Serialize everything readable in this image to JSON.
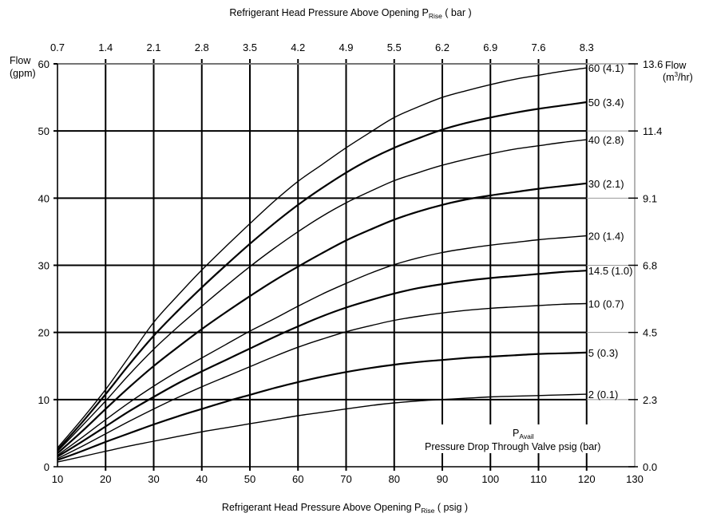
{
  "chart_data": {
    "type": "line",
    "title_top": "Refrigerant Head Pressure  Above Opening P",
    "title_top_sub": "Rise",
    "title_top_unit": " ( bar )",
    "xlabel_main": "Refrigerant Head Pressure  Above Opening P",
    "xlabel_sub": "Rise",
    "xlabel_unit": " ( psig )",
    "left_axis_label_line1": "Flow",
    "left_axis_label_line2": "(gpm)",
    "right_axis_label_line1": "Flow",
    "right_axis_label_line2_pre": "(m",
    "right_axis_label_line2_sup": "3",
    "right_axis_label_line2_post": "/hr)",
    "x_range": [
      10,
      130
    ],
    "y_range": [
      0,
      60
    ],
    "x_ticks": [
      "10",
      "20",
      "30",
      "40",
      "50",
      "60",
      "70",
      "80",
      "90",
      "100",
      "110",
      "120",
      "130"
    ],
    "x_tick_values": [
      10,
      20,
      30,
      40,
      50,
      60,
      70,
      80,
      90,
      100,
      110,
      120,
      130
    ],
    "y_ticks": [
      "0",
      "10",
      "20",
      "30",
      "40",
      "50",
      "60"
    ],
    "y_tick_values": [
      0,
      10,
      20,
      30,
      40,
      50,
      60
    ],
    "top_ticks": [
      "0.7",
      "1.4",
      "2.1",
      "2.8",
      "3.5",
      "4.2",
      "4.9",
      "5.5",
      "6.2",
      "6.9",
      "7.6",
      "8.3"
    ],
    "top_tick_values": [
      10,
      20,
      30,
      40,
      50,
      60,
      70,
      80,
      90,
      100,
      110,
      120
    ],
    "right_ticks": [
      "0.0",
      "2.3",
      "4.5",
      "6.8",
      "9.1",
      "11.4",
      "13.6"
    ],
    "right_tick_values": [
      0,
      10,
      20,
      30,
      40,
      50,
      60
    ],
    "vgrid": [
      20,
      30,
      40,
      50,
      60,
      70,
      80,
      90,
      100,
      110,
      120
    ],
    "hgrid": [
      10,
      20,
      30,
      40,
      50,
      60
    ],
    "annotation_p": "P",
    "annotation_sub": "Avail",
    "annotation_desc": "Pressure Drop Through Valve psig (bar)",
    "x": [
      10,
      15,
      20,
      25,
      30,
      35,
      40,
      45,
      50,
      55,
      60,
      65,
      70,
      75,
      80,
      85,
      90,
      95,
      100,
      105,
      110,
      115,
      120
    ],
    "series": [
      {
        "name": "60 (4.1)",
        "values": [
          2.8,
          7.0,
          11.5,
          16.5,
          21.5,
          25.5,
          29.3,
          32.8,
          36.2,
          39.5,
          42.5,
          45.0,
          47.5,
          49.8,
          52.0,
          53.6,
          55.0,
          56.0,
          56.9,
          57.7,
          58.3,
          58.9,
          59.4
        ]
      },
      {
        "name": "50 (3.4)",
        "values": [
          2.5,
          6.5,
          10.8,
          15.3,
          19.5,
          23.2,
          26.7,
          30.0,
          33.2,
          36.2,
          39.0,
          41.5,
          43.8,
          45.8,
          47.5,
          48.9,
          50.2,
          51.2,
          52.0,
          52.7,
          53.3,
          53.8,
          54.3
        ]
      },
      {
        "name": "40 (2.8)",
        "values": [
          2.3,
          6.0,
          9.8,
          13.8,
          17.5,
          20.8,
          23.9,
          26.9,
          29.8,
          32.5,
          35.0,
          37.3,
          39.3,
          41.0,
          42.6,
          43.8,
          44.9,
          45.8,
          46.6,
          47.3,
          47.8,
          48.3,
          48.7
        ]
      },
      {
        "name": "30 (2.1)",
        "values": [
          2.0,
          5.2,
          8.6,
          11.9,
          15.0,
          17.8,
          20.5,
          23.0,
          25.4,
          27.7,
          29.8,
          31.8,
          33.7,
          35.3,
          36.8,
          38.0,
          39.0,
          39.8,
          40.4,
          40.9,
          41.4,
          41.8,
          42.2
        ]
      },
      {
        "name": "20 (1.4)",
        "values": [
          1.7,
          4.3,
          7.0,
          9.6,
          12.0,
          14.2,
          16.2,
          18.2,
          20.2,
          22.0,
          23.9,
          25.7,
          27.3,
          28.8,
          30.1,
          31.1,
          31.9,
          32.5,
          33.0,
          33.4,
          33.8,
          34.1,
          34.4
        ]
      },
      {
        "name": "14.5 (1.0)",
        "values": [
          1.5,
          3.7,
          6.0,
          8.3,
          10.4,
          12.4,
          14.2,
          15.9,
          17.6,
          19.3,
          20.9,
          22.4,
          23.7,
          24.8,
          25.8,
          26.6,
          27.2,
          27.7,
          28.1,
          28.4,
          28.7,
          29.0,
          29.2
        ]
      },
      {
        "name": "10 (0.7)",
        "values": [
          1.2,
          3.0,
          4.9,
          6.8,
          8.6,
          10.3,
          11.9,
          13.4,
          14.9,
          16.4,
          17.8,
          19.0,
          20.1,
          21.0,
          21.8,
          22.4,
          22.9,
          23.3,
          23.6,
          23.8,
          24.0,
          24.2,
          24.3
        ]
      },
      {
        "name": "5 (0.3)",
        "values": [
          1.0,
          2.3,
          3.7,
          5.0,
          6.3,
          7.5,
          8.6,
          9.7,
          10.7,
          11.7,
          12.6,
          13.4,
          14.1,
          14.7,
          15.2,
          15.6,
          15.9,
          16.2,
          16.4,
          16.6,
          16.8,
          16.9,
          17.0
        ]
      },
      {
        "name": "2 (0.1)",
        "values": [
          0.7,
          1.5,
          2.3,
          3.1,
          3.8,
          4.5,
          5.2,
          5.8,
          6.4,
          7.0,
          7.6,
          8.1,
          8.6,
          9.1,
          9.5,
          9.8,
          10.0,
          10.2,
          10.4,
          10.5,
          10.6,
          10.7,
          10.8
        ]
      }
    ]
  }
}
